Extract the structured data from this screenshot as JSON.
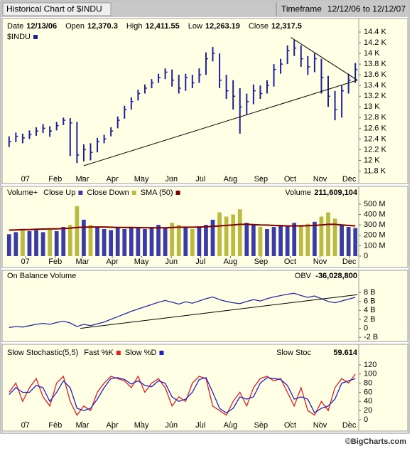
{
  "header": {
    "title": "Historical Chart of $INDU",
    "timeframe_label": "Timeframe",
    "timeframe": "12/12/06 to 12/12/07"
  },
  "footer": "©BigCharts.com",
  "chart_data": [
    {
      "type": "ohlc",
      "readout": [
        {
          "label": "Date",
          "value": "12/13/06"
        },
        {
          "label": "Open",
          "value": "12,370.3"
        },
        {
          "label": "High",
          "value": "12,411.55"
        },
        {
          "label": "Low",
          "value": "12,263.19"
        },
        {
          "label": "Close",
          "value": "12,317.5"
        }
      ],
      "series": [
        {
          "name": "$INDU",
          "color": "#1f1f99",
          "high": [
            12450,
            12520,
            12500,
            12560,
            12620,
            12680,
            12640,
            12720,
            12800,
            12790,
            12720,
            12300,
            12320,
            12420,
            12480,
            12620,
            12820,
            13020,
            13180,
            13320,
            13420,
            13520,
            13620,
            13720,
            13700,
            13600,
            13620,
            13600,
            13720,
            14020,
            14120,
            14000,
            13600,
            13500,
            13350,
            13250,
            13420,
            13400,
            13500,
            13800,
            13900,
            14150,
            14250,
            14150,
            13950,
            14000,
            13900,
            13580,
            13300,
            13400,
            13620,
            13820
          ],
          "low": [
            12250,
            12340,
            12320,
            12400,
            12460,
            12510,
            12440,
            12560,
            12660,
            12080,
            11950,
            11980,
            12000,
            12150,
            12320,
            12450,
            12600,
            12780,
            12950,
            13120,
            13250,
            13350,
            13450,
            13520,
            13380,
            13250,
            13300,
            13350,
            13450,
            13600,
            13850,
            13350,
            13150,
            12950,
            12500,
            12850,
            13050,
            13150,
            13250,
            13380,
            13620,
            13800,
            13950,
            13750,
            13600,
            13650,
            13250,
            13000,
            12750,
            12800,
            13250,
            13450
          ],
          "close": [
            12350,
            12450,
            12420,
            12480,
            12550,
            12600,
            12550,
            12650,
            12750,
            12700,
            12100,
            12200,
            12150,
            12350,
            12400,
            12550,
            12750,
            12950,
            13100,
            13250,
            13350,
            13450,
            13550,
            13650,
            13500,
            13350,
            13550,
            13450,
            13600,
            13900,
            14000,
            13500,
            13300,
            13200,
            13000,
            13100,
            13300,
            13250,
            13400,
            13700,
            13800,
            14050,
            14100,
            13900,
            13750,
            13900,
            13550,
            13200,
            12950,
            13300,
            13500,
            13700
          ]
        }
      ],
      "trendlines": [
        {
          "x": [
            11.5,
            51.8
          ],
          "y": [
            11900,
            13500
          ]
        },
        {
          "x": [
            42,
            51.8
          ],
          "y": [
            14300,
            13500
          ]
        }
      ],
      "xlim": [
        0,
        52
      ],
      "xticks": [
        {
          "value": 2.9,
          "label": "07"
        },
        {
          "value": 7.3,
          "label": "Feb"
        },
        {
          "value": 11.3,
          "label": "Mar"
        },
        {
          "value": 15.7,
          "label": "Apr"
        },
        {
          "value": 20,
          "label": "May"
        },
        {
          "value": 24.4,
          "label": "Jun"
        },
        {
          "value": 28.7,
          "label": "Jul"
        },
        {
          "value": 33.1,
          "label": "Aug"
        },
        {
          "value": 37.6,
          "label": "Sep"
        },
        {
          "value": 41.9,
          "label": "Oct"
        },
        {
          "value": 46.3,
          "label": "Nov"
        },
        {
          "value": 50.6,
          "label": "Dec"
        }
      ],
      "ylim": [
        11700,
        14600
      ],
      "yticks": [
        {
          "value": 14400,
          "label": "14.4 K"
        },
        {
          "value": 14200,
          "label": "14.2 K"
        },
        {
          "value": 14000,
          "label": "14 K"
        },
        {
          "value": 13800,
          "label": "13.8 K"
        },
        {
          "value": 13600,
          "label": "13.6 K"
        },
        {
          "value": 13400,
          "label": "13.4 K"
        },
        {
          "value": 13200,
          "label": "13.2 K"
        },
        {
          "value": 13000,
          "label": "13 K"
        },
        {
          "value": 12800,
          "label": "12.8 K"
        },
        {
          "value": 12600,
          "label": "12.6 K"
        },
        {
          "value": 12400,
          "label": "12.4 K"
        },
        {
          "value": 12200,
          "label": "12.2 K"
        },
        {
          "value": 12000,
          "label": "12 K"
        },
        {
          "value": 11800,
          "label": "11.8 K"
        }
      ],
      "grid": false
    },
    {
      "type": "volume",
      "title": "Volume+",
      "readout": [
        {
          "label": "Volume",
          "value": "211,609,104"
        }
      ],
      "series": [
        {
          "name": "Close Up",
          "color": "#3b3ba6",
          "kind": "bar",
          "values": [
            210000000.0,
            230000000.0,
            null,
            240000000.0,
            250000000.0,
            230000000.0,
            null,
            240000000.0,
            280000000.0,
            null,
            null,
            350000000.0,
            null,
            280000000.0,
            260000000.0,
            250000000.0,
            270000000.0,
            260000000.0,
            280000000.0,
            270000000.0,
            260000000.0,
            280000000.0,
            300000000.0,
            270000000.0,
            null,
            null,
            280000000.0,
            null,
            280000000.0,
            300000000.0,
            350000000.0,
            null,
            null,
            null,
            null,
            320000000.0,
            300000000.0,
            null,
            260000000.0,
            280000000.0,
            300000000.0,
            290000000.0,
            320000000.0,
            null,
            null,
            330000000.0,
            null,
            null,
            null,
            300000000.0,
            280000000.0,
            270000000.0
          ]
        },
        {
          "name": "Close Down",
          "color": "#b9b944",
          "kind": "bar",
          "values": [
            null,
            null,
            250000000.0,
            null,
            null,
            null,
            260000000.0,
            null,
            null,
            300000000.0,
            480000000.0,
            null,
            300000000.0,
            null,
            null,
            null,
            null,
            null,
            null,
            null,
            null,
            null,
            null,
            null,
            320000000.0,
            300000000.0,
            null,
            260000000.0,
            null,
            null,
            null,
            420000000.0,
            380000000.0,
            400000000.0,
            450000000.0,
            null,
            null,
            280000000.0,
            null,
            null,
            null,
            null,
            null,
            300000000.0,
            310000000.0,
            null,
            380000000.0,
            420000000.0,
            360000000.0,
            null,
            null,
            null
          ]
        },
        {
          "name": "SMA (50)",
          "color": "#800000",
          "kind": "line",
          "values": [
            250000000.0,
            252000000.0,
            255000000.0,
            255000000.0,
            258000000.0,
            260000000.0,
            262000000.0,
            262000000.0,
            265000000.0,
            268000000.0,
            275000000.0,
            278000000.0,
            280000000.0,
            280000000.0,
            280000000.0,
            278000000.0,
            276000000.0,
            275000000.0,
            275000000.0,
            274000000.0,
            273000000.0,
            272000000.0,
            272000000.0,
            272000000.0,
            275000000.0,
            278000000.0,
            278000000.0,
            278000000.0,
            280000000.0,
            282000000.0,
            285000000.0,
            290000000.0,
            295000000.0,
            300000000.0,
            305000000.0,
            305000000.0,
            303000000.0,
            300000000.0,
            298000000.0,
            295000000.0,
            292000000.0,
            290000000.0,
            290000000.0,
            290000000.0,
            292000000.0,
            295000000.0,
            300000000.0,
            305000000.0,
            305000000.0,
            300000000.0,
            295000000.0,
            290000000.0
          ]
        }
      ],
      "xlim": [
        0,
        52
      ],
      "xticks": [
        {
          "value": 2.9,
          "label": "07"
        },
        {
          "value": 7.3,
          "label": "Feb"
        },
        {
          "value": 11.3,
          "label": "Mar"
        },
        {
          "value": 15.7,
          "label": "Apr"
        },
        {
          "value": 20,
          "label": "May"
        },
        {
          "value": 24.4,
          "label": "Jun"
        },
        {
          "value": 28.7,
          "label": "Jul"
        },
        {
          "value": 33.1,
          "label": "Aug"
        },
        {
          "value": 37.6,
          "label": "Sep"
        },
        {
          "value": 41.9,
          "label": "Oct"
        },
        {
          "value": 46.3,
          "label": "Nov"
        },
        {
          "value": 50.6,
          "label": "Dec"
        }
      ],
      "ylim": [
        0,
        650000000.0
      ],
      "yticks": [
        {
          "value": 500000000.0,
          "label": "500 M"
        },
        {
          "value": 400000000.0,
          "label": "400 M"
        },
        {
          "value": 300000000.0,
          "label": "300 M"
        },
        {
          "value": 200000000.0,
          "label": "200 M"
        },
        {
          "value": 100000000.0,
          "label": "100 M"
        },
        0
      ],
      "grid": false
    },
    {
      "type": "line",
      "title": "On Balance Volume",
      "readout": [
        {
          "label": "OBV",
          "value": "-36,028,800"
        }
      ],
      "series": [
        {
          "color": "#2a2aa0",
          "values": [
            200000000.0,
            400000000.0,
            300000000.0,
            600000000.0,
            900000000.0,
            1100000000.0,
            900000000.0,
            1300000000.0,
            1600000000.0,
            1200000000.0,
            400000000.0,
            900000000.0,
            600000000.0,
            1000000000.0,
            1400000000.0,
            2000000000.0,
            2600000000.0,
            3200000000.0,
            3800000000.0,
            4300000000.0,
            4800000000.0,
            5300000000.0,
            5800000000.0,
            6200000000.0,
            5800000000.0,
            5400000000.0,
            5900000000.0,
            5600000000.0,
            6100000000.0,
            6600000000.0,
            7000000000.0,
            6400000000.0,
            6000000000.0,
            5700000000.0,
            5500000000.0,
            6000000000.0,
            6400000000.0,
            6100000000.0,
            6600000000.0,
            7000000000.0,
            7300000000.0,
            7600000000.0,
            7800000000.0,
            7300000000.0,
            6900000000.0,
            7200000000.0,
            6600000000.0,
            6000000000.0,
            5700000000.0,
            6100000000.0,
            6500000000.0,
            6900000000.0
          ]
        }
      ],
      "trendlines": [
        {
          "x": [
            11,
            51.8
          ],
          "y": [
            0,
            7500000000.0
          ]
        }
      ],
      "xlim": [
        0,
        52
      ],
      "ylim": [
        -2600000000.0,
        12600000000.0
      ],
      "yticks": [
        {
          "value": 8000000000.0,
          "label": "8 B"
        },
        {
          "value": 6000000000.0,
          "label": "6 B"
        },
        {
          "value": 4000000000.0,
          "label": "4 B"
        },
        {
          "value": 2000000000.0,
          "label": "2 B"
        },
        0,
        {
          "value": -2000000000.0,
          "label": "-2 B"
        }
      ],
      "grid": false
    },
    {
      "type": "line",
      "title": "Slow Stochastic(5,5)",
      "readout": [
        {
          "label": "Slow Stoc",
          "value": "59.614"
        }
      ],
      "series": [
        {
          "name": "Fast %K",
          "color": "#e02020",
          "values": [
            60,
            80,
            40,
            70,
            90,
            50,
            30,
            80,
            95,
            40,
            10,
            30,
            20,
            60,
            80,
            95,
            90,
            85,
            70,
            95,
            60,
            80,
            90,
            70,
            30,
            50,
            40,
            80,
            95,
            90,
            30,
            20,
            10,
            40,
            60,
            30,
            70,
            90,
            95,
            85,
            90,
            60,
            30,
            70,
            20,
            10,
            40,
            20,
            70,
            90,
            80,
            100
          ]
        },
        {
          "name": "Slow %D",
          "color": "#2020c0",
          "values": [
            55,
            70,
            60,
            60,
            75,
            70,
            40,
            60,
            85,
            70,
            25,
            20,
            25,
            45,
            70,
            90,
            92,
            88,
            78,
            85,
            75,
            72,
            85,
            80,
            50,
            40,
            45,
            60,
            88,
            92,
            60,
            25,
            15,
            25,
            50,
            45,
            50,
            80,
            92,
            90,
            88,
            75,
            45,
            50,
            45,
            15,
            25,
            30,
            45,
            80,
            85,
            90
          ]
        }
      ],
      "xlim": [
        0,
        52
      ],
      "xticks": [
        {
          "value": 2.9,
          "label": "07"
        },
        {
          "value": 7.3,
          "label": "Feb"
        },
        {
          "value": 11.3,
          "label": "Mar"
        },
        {
          "value": 15.7,
          "label": "Apr"
        },
        {
          "value": 20,
          "label": "May"
        },
        {
          "value": 24.4,
          "label": "Jun"
        },
        {
          "value": 28.7,
          "label": "Jul"
        },
        {
          "value": 33.1,
          "label": "Aug"
        },
        {
          "value": 37.6,
          "label": "Sep"
        },
        {
          "value": 41.9,
          "label": "Oct"
        },
        {
          "value": 46.3,
          "label": "Nov"
        },
        {
          "value": 50.6,
          "label": "Dec"
        }
      ],
      "ylim": [
        -3,
        140
      ],
      "yticks": [
        120,
        100,
        80,
        60,
        40,
        20,
        0
      ],
      "grid": false
    }
  ]
}
